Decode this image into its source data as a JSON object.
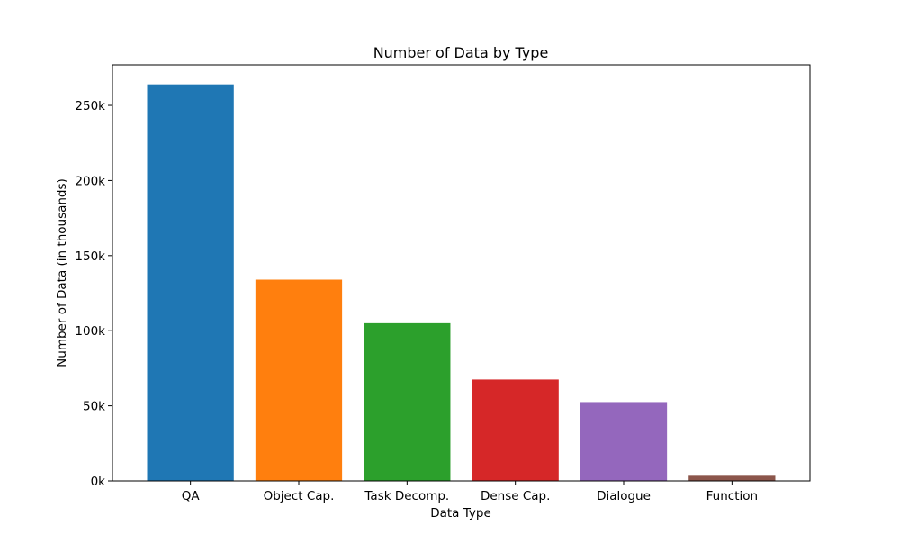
{
  "chart_data": {
    "type": "bar",
    "title": "Number of Data by Type",
    "xlabel": "Data Type",
    "ylabel": "Number of Data (in thousands)",
    "categories": [
      "QA",
      "Object Cap.",
      "Task Decomp.",
      "Dense Cap.",
      "Dialogue",
      "Function"
    ],
    "values": [
      264000,
      134000,
      105000,
      67500,
      52500,
      4000
    ],
    "colors": [
      "#1f77b4",
      "#ff7f0e",
      "#2ca02c",
      "#d62728",
      "#9467bd",
      "#8c564b"
    ],
    "ylim": [
      0,
      277000
    ],
    "yticks": [
      0,
      50000,
      100000,
      150000,
      200000,
      250000
    ],
    "ytick_labels": [
      "0k",
      "50k",
      "100k",
      "150k",
      "200k",
      "250k"
    ],
    "grid": false,
    "legend": "none"
  }
}
